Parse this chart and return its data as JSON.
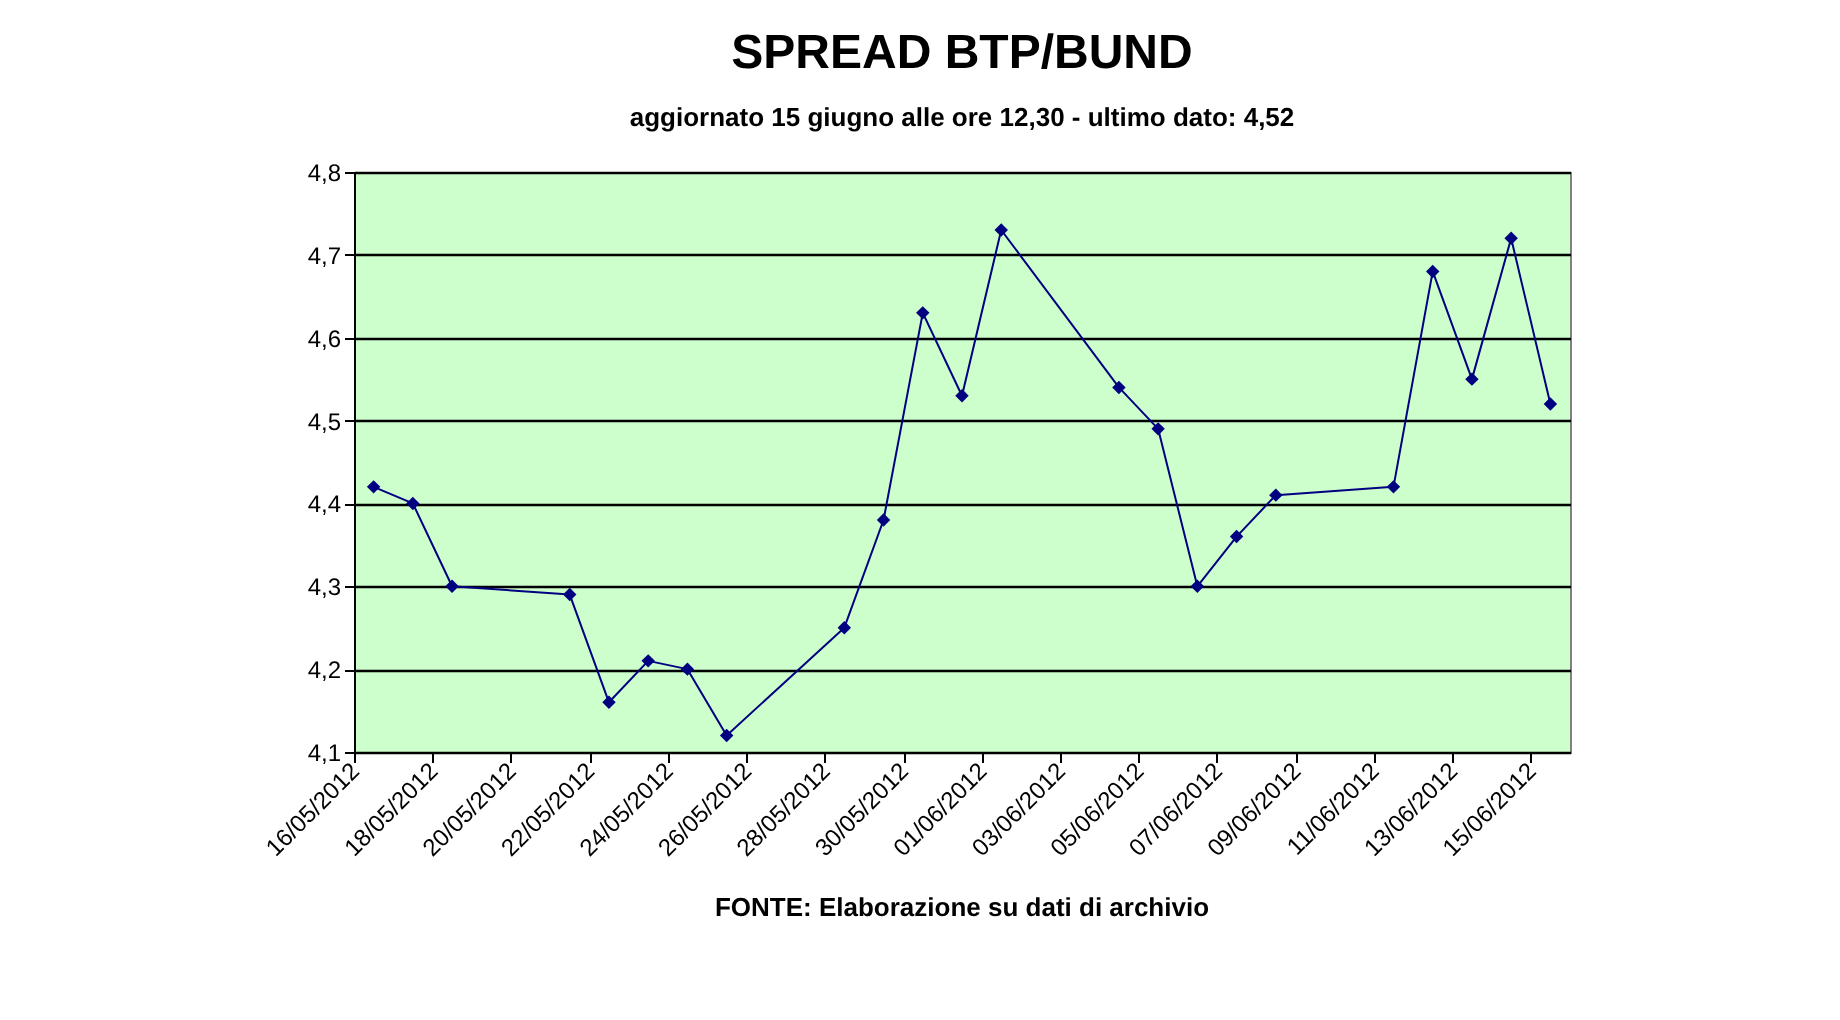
{
  "chart_data": {
    "type": "line",
    "title": "SPREAD BTP/BUND",
    "subtitle": "aggiornato  15 giugno alle ore 12,30 - ultimo dato: 4,52",
    "x": [
      "2012-05-16T12:00",
      "2012-05-17T12:00",
      "2012-05-18T12:00",
      "2012-05-21T12:00",
      "2012-05-22T12:00",
      "2012-05-23T12:00",
      "2012-05-24T12:00",
      "2012-05-25T12:00",
      "2012-05-28T12:00",
      "2012-05-29T12:00",
      "2012-05-30T12:00",
      "2012-05-31T12:00",
      "2012-06-01T12:00",
      "2012-06-04T12:00",
      "2012-06-05T12:00",
      "2012-06-06T12:00",
      "2012-06-07T12:00",
      "2012-06-08T12:00",
      "2012-06-11T12:00",
      "2012-06-12T12:00",
      "2012-06-13T12:00",
      "2012-06-14T12:00",
      "2012-06-15T12:00"
    ],
    "series": [
      {
        "color": "#000080",
        "values": [
          4.42,
          4.4,
          4.3,
          4.29,
          4.16,
          4.21,
          4.2,
          4.12,
          4.25,
          4.38,
          4.63,
          4.53,
          4.73,
          4.54,
          4.49,
          4.3,
          4.36,
          4.41,
          4.42,
          4.68,
          4.55,
          4.72,
          4.52
        ]
      }
    ],
    "xlim": [
      "2012-05-16",
      "2012-06-16"
    ],
    "xticks": [
      {
        "value": "2012-05-16",
        "label": "16/05/2012"
      },
      {
        "value": "2012-05-18",
        "label": "18/05/2012"
      },
      {
        "value": "2012-05-20",
        "label": "20/05/2012"
      },
      {
        "value": "2012-05-22",
        "label": "22/05/2012"
      },
      {
        "value": "2012-05-24",
        "label": "24/05/2012"
      },
      {
        "value": "2012-05-26",
        "label": "26/05/2012"
      },
      {
        "value": "2012-05-28",
        "label": "28/05/2012"
      },
      {
        "value": "2012-05-30",
        "label": "30/05/2012"
      },
      {
        "value": "2012-06-01",
        "label": "01/06/2012"
      },
      {
        "value": "2012-06-03",
        "label": "03/06/2012"
      },
      {
        "value": "2012-06-05",
        "label": "05/06/2012"
      },
      {
        "value": "2012-06-07",
        "label": "07/06/2012"
      },
      {
        "value": "2012-06-09",
        "label": "09/06/2012"
      },
      {
        "value": "2012-06-11",
        "label": "11/06/2012"
      },
      {
        "value": "2012-06-13",
        "label": "13/06/2012"
      },
      {
        "value": "2012-06-15",
        "label": "15/06/2012"
      }
    ],
    "ylim": [
      4.1,
      4.8
    ],
    "yticks": [
      {
        "value": 4.1,
        "label": "4,1"
      },
      {
        "value": 4.2,
        "label": "4,2"
      },
      {
        "value": 4.3,
        "label": "4,3"
      },
      {
        "value": 4.4,
        "label": "4,4"
      },
      {
        "value": 4.5,
        "label": "4,5"
      },
      {
        "value": 4.6,
        "label": "4,6"
      },
      {
        "value": 4.7,
        "label": "4,7"
      },
      {
        "value": 4.8,
        "label": "4,8"
      }
    ],
    "grid": "y",
    "marker": "diamond",
    "line_style": "solid",
    "annotations": [
      "FONTE: Elaborazione su dati di archivio"
    ]
  }
}
